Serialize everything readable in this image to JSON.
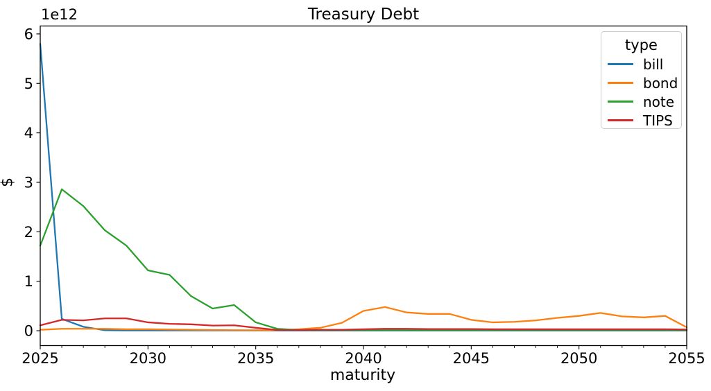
{
  "figure": {
    "background": "#ffffff",
    "text_color": "#000000"
  },
  "chart_data": {
    "type": "line",
    "title": "Treasury Debt",
    "xlabel": "maturity",
    "ylabel": "$",
    "offset_text": "1e12",
    "values_unit": "trillions of dollars (1e12)",
    "grid": false,
    "xlim": [
      2025,
      2055
    ],
    "ylim": [
      -0.3,
      6.16
    ],
    "xticks": [
      2025,
      2030,
      2035,
      2040,
      2045,
      2050,
      2055
    ],
    "yticks": [
      0,
      1,
      2,
      3,
      4,
      5,
      6
    ],
    "minor_xtick_every": 1,
    "x": [
      2025,
      2026,
      2027,
      2028,
      2029,
      2030,
      2031,
      2032,
      2033,
      2034,
      2035,
      2036,
      2037,
      2038,
      2039,
      2040,
      2041,
      2042,
      2043,
      2044,
      2045,
      2046,
      2047,
      2048,
      2049,
      2050,
      2051,
      2052,
      2053,
      2054,
      2055
    ],
    "series": [
      {
        "name": "bill",
        "color": "#1f77b4",
        "values": [
          5.8,
          0.24,
          0.08,
          0.01,
          0.005,
          0.005,
          0.005,
          0.005,
          0.005,
          0.005,
          0.005,
          0.004,
          0.004,
          0.004,
          0.004,
          0.004,
          0.004,
          0.004,
          0.004,
          0.004,
          0.004,
          0.004,
          0.004,
          0.004,
          0.004,
          0.004,
          0.004,
          0.004,
          0.004,
          0.004,
          0.004
        ]
      },
      {
        "name": "bond",
        "color": "#ff7f0e",
        "values": [
          0.02,
          0.04,
          0.04,
          0.04,
          0.03,
          0.03,
          0.025,
          0.02,
          0.015,
          0.012,
          0.01,
          0.012,
          0.03,
          0.06,
          0.16,
          0.4,
          0.48,
          0.37,
          0.34,
          0.34,
          0.22,
          0.17,
          0.18,
          0.21,
          0.26,
          0.3,
          0.36,
          0.29,
          0.27,
          0.3,
          0.07
        ]
      },
      {
        "name": "note",
        "color": "#2ca02c",
        "values": [
          1.72,
          2.86,
          2.52,
          2.03,
          1.72,
          1.22,
          1.13,
          0.7,
          0.45,
          0.52,
          0.17,
          0.04,
          0.015,
          0.012,
          0.012,
          0.012,
          0.012,
          0.012,
          0.012,
          0.012,
          0.012,
          0.012,
          0.012,
          0.012,
          0.012,
          0.012,
          0.012,
          0.012,
          0.012,
          0.012,
          0.012
        ]
      },
      {
        "name": "TIPS",
        "color": "#d62728",
        "values": [
          0.11,
          0.22,
          0.21,
          0.25,
          0.25,
          0.17,
          0.14,
          0.13,
          0.105,
          0.11,
          0.06,
          0.015,
          0.015,
          0.02,
          0.02,
          0.03,
          0.04,
          0.04,
          0.035,
          0.035,
          0.035,
          0.03,
          0.03,
          0.03,
          0.03,
          0.03,
          0.03,
          0.03,
          0.03,
          0.03,
          0.025
        ]
      }
    ],
    "legend": {
      "title": "type",
      "position": "upper right"
    }
  }
}
